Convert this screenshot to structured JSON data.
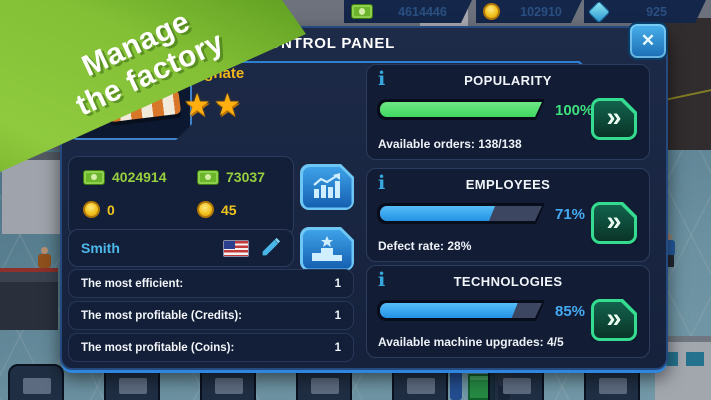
{
  "ribbon": {
    "line1": "Manage",
    "line2": "the factory"
  },
  "hud": {
    "resources": [
      {
        "icon": "cash-icon",
        "value": "4614446"
      },
      {
        "icon": "coin-icon",
        "value": "102910"
      },
      {
        "icon": "gem-icon",
        "value": "925"
      }
    ]
  },
  "dialog": {
    "title": "CONTROL PANEL",
    "player": {
      "rank_title": "Industry Magnate",
      "stars": 2,
      "currencies": {
        "credits_main": "4024914",
        "credits_secondary": "73037",
        "coins_main": "0",
        "coins_secondary": "45"
      },
      "name": "Smith"
    },
    "stats": [
      {
        "label": "The most efficient:",
        "value": "1"
      },
      {
        "label": "The most profitable (Credits):",
        "value": "1"
      },
      {
        "label": "The most profitable (Coins):",
        "value": "1"
      }
    ],
    "panels": [
      {
        "title": "POPULARITY",
        "percent": 100,
        "percent_label": "100%",
        "footer": "Available orders: 138/138"
      },
      {
        "title": "EMPLOYEES",
        "percent": 71,
        "percent_label": "71%",
        "footer": "Defect rate: 28%"
      },
      {
        "title": "TECHNOLOGIES",
        "percent": 85,
        "percent_label": "85%",
        "footer": "Available machine upgrades: 4/5"
      }
    ]
  },
  "icons": {
    "close": "✕",
    "info": "i",
    "chevrons": "»",
    "star": "★"
  },
  "colors": {
    "accent_green": "#3ee07c",
    "accent_blue": "#45aaf2",
    "gold_title": "#f2b61c",
    "credit_green": "#97cf3e",
    "coin_yellow": "#f0c41f",
    "name_blue": "#4cb9ea",
    "ribbon_green": "#83c036"
  }
}
